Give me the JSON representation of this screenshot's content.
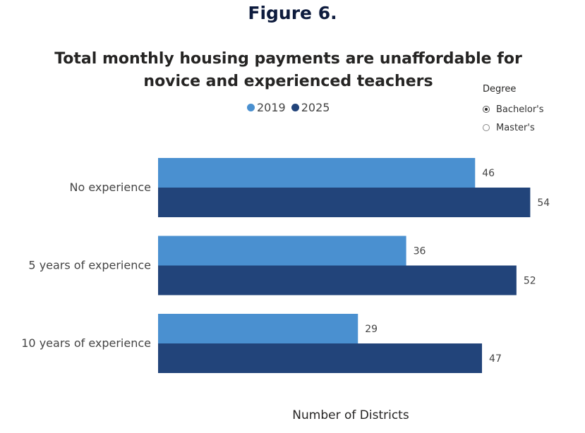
{
  "figure_label": "Figure 6.",
  "slicer": {
    "header": "Degree",
    "options": [
      {
        "label": "Bachelor's",
        "selected": true
      },
      {
        "label": "Master's",
        "selected": false
      }
    ]
  },
  "chart_data": {
    "type": "bar",
    "orientation": "horizontal",
    "title": "Total monthly housing payments are unaffordable for novice and experienced teachers",
    "xlabel": "Number of Districts",
    "ylabel": "",
    "categories": [
      "No experience",
      "5 years of experience",
      "10 years of experience"
    ],
    "series": [
      {
        "name": "2019",
        "color": "#4a90d0",
        "values": [
          46,
          36,
          29
        ]
      },
      {
        "name": "2025",
        "color": "#22447a",
        "values": [
          54,
          52,
          47
        ]
      }
    ],
    "xlim": [
      0,
      60
    ],
    "grid": false,
    "legend_position": "top-center"
  }
}
